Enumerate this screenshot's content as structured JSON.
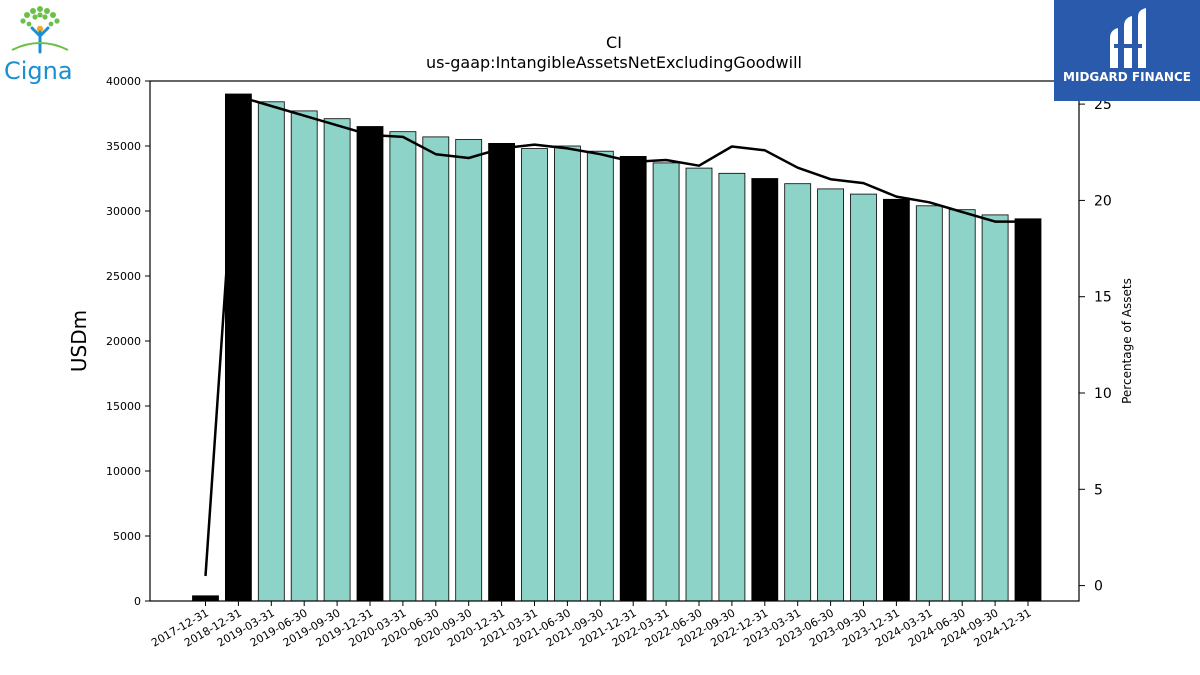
{
  "logos": {
    "left_text": "Cigna",
    "right_text": "MIDGARD FINANCE"
  },
  "colors": {
    "bar_fill": "#8dd3c7",
    "bar_year_end": "#000000",
    "line": "#000000",
    "cigna_blue": "#1a8fd1",
    "midgard_blue": "#2a5aab"
  },
  "chart_data": {
    "type": "bar",
    "title": "CI",
    "subtitle": "us-gaap:IntangibleAssetsNetExcludingGoodwill",
    "ylabel": "USDm",
    "ylabel_right": "Percentage of Assets",
    "ylim": [
      0,
      40000
    ],
    "ylim_right": [
      -0.8,
      26.2
    ],
    "yticks": [
      0,
      5000,
      10000,
      15000,
      20000,
      25000,
      30000,
      35000,
      40000
    ],
    "yticks_right": [
      0,
      5,
      10,
      15,
      20,
      25
    ],
    "categories": [
      "2017-12-31",
      "2018-12-31",
      "2019-03-31",
      "2019-06-30",
      "2019-09-30",
      "2019-12-31",
      "2020-03-31",
      "2020-06-30",
      "2020-09-30",
      "2020-12-31",
      "2021-03-31",
      "2021-06-30",
      "2021-09-30",
      "2021-12-31",
      "2022-03-31",
      "2022-06-30",
      "2022-09-30",
      "2022-12-31",
      "2023-03-31",
      "2023-06-30",
      "2023-09-30",
      "2023-12-31",
      "2024-03-31",
      "2024-06-30",
      "2024-09-30",
      "2024-12-31"
    ],
    "series": [
      {
        "type": "bar",
        "values": [
          400,
          39000,
          38400,
          37700,
          37100,
          36500,
          36100,
          35700,
          35500,
          35200,
          34800,
          35000,
          34600,
          34200,
          33700,
          33300,
          32900,
          32500,
          32100,
          31700,
          31300,
          30900,
          30400,
          30100,
          29700,
          29400
        ],
        "year_end": [
          true,
          true,
          false,
          false,
          false,
          true,
          false,
          false,
          false,
          true,
          false,
          false,
          false,
          true,
          false,
          false,
          false,
          true,
          false,
          false,
          false,
          true,
          false,
          false,
          false,
          true
        ]
      },
      {
        "type": "line",
        "axis": "right",
        "values": [
          0.5,
          25.4,
          24.9,
          24.4,
          23.9,
          23.4,
          23.3,
          22.4,
          22.2,
          22.7,
          22.9,
          22.7,
          22.4,
          22.0,
          22.1,
          21.8,
          22.8,
          22.6,
          21.7,
          21.1,
          20.9,
          20.2,
          19.9,
          19.4,
          18.9,
          18.9
        ]
      }
    ]
  }
}
